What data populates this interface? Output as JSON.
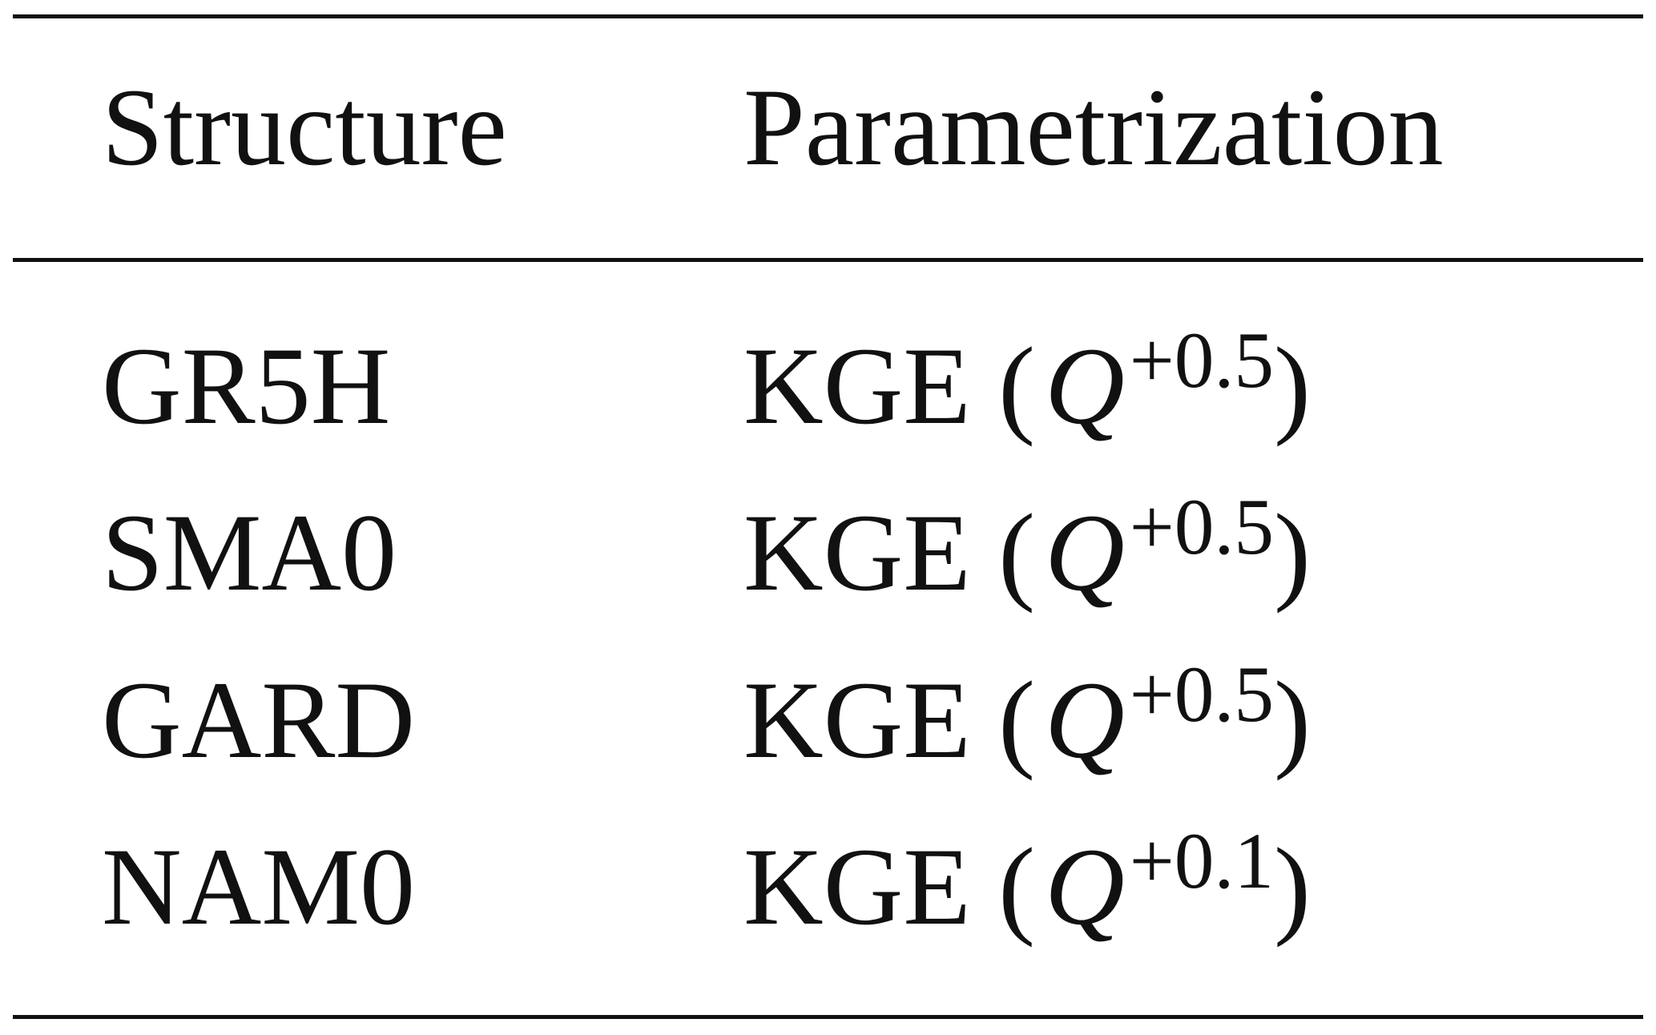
{
  "table": {
    "headers": [
      "Structure",
      "Parametrization"
    ],
    "rows": [
      {
        "structure": "GR5H",
        "metric": "KGE",
        "variable": "Q",
        "exponent": "+0.5"
      },
      {
        "structure": "SMA0",
        "metric": "KGE",
        "variable": "Q",
        "exponent": "+0.5"
      },
      {
        "structure": "GARD",
        "metric": "KGE",
        "variable": "Q",
        "exponent": "+0.5"
      },
      {
        "structure": "NAM0",
        "metric": "KGE",
        "variable": "Q",
        "exponent": "+0.1"
      }
    ]
  }
}
